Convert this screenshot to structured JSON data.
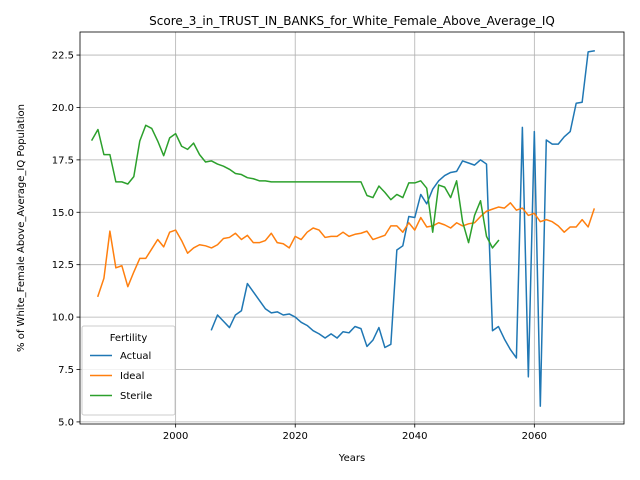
{
  "chart_data": {
    "type": "line",
    "title": "Score_3_in_TRUST_IN_BANKS_for_White_Female_Above_Average_IQ",
    "xlabel": "Years",
    "ylabel": "% of White_Female Above_Average_IQ Population",
    "xlim": [
      1984,
      2075
    ],
    "ylim": [
      4.9,
      23.6
    ],
    "xticks": [
      2000,
      2020,
      2040,
      2060
    ],
    "yticks": [
      5.0,
      7.5,
      10.0,
      12.5,
      15.0,
      17.5,
      20.0,
      22.5
    ],
    "xtick_labels": [
      "2000",
      "2020",
      "2040",
      "2060"
    ],
    "ytick_labels": [
      "5.0",
      "7.5",
      "10.0",
      "12.5",
      "15.0",
      "17.5",
      "20.0",
      "22.5"
    ],
    "grid": true,
    "legend": {
      "title": "Fertility",
      "placement": "lower-left"
    },
    "series": [
      {
        "name": "Actual",
        "color": "#1f77b4",
        "x": [
          2006,
          2007,
          2008,
          2009,
          2010,
          2011,
          2012,
          2013,
          2014,
          2015,
          2016,
          2017,
          2018,
          2019,
          2020,
          2021,
          2022,
          2023,
          2024,
          2025,
          2026,
          2027,
          2028,
          2029,
          2030,
          2031,
          2032,
          2033,
          2034,
          2035,
          2036,
          2037,
          2038,
          2039,
          2040,
          2041,
          2042,
          2043,
          2044,
          2045,
          2046,
          2047,
          2048,
          2049,
          2050,
          2051,
          2052,
          2053,
          2054,
          2055,
          2056,
          2057,
          2058,
          2059,
          2060,
          2061,
          2062,
          2063,
          2064,
          2065,
          2066,
          2067,
          2068,
          2069,
          2070
        ],
        "y": [
          9.4,
          10.1,
          9.8,
          9.5,
          10.1,
          10.3,
          11.6,
          11.2,
          10.8,
          10.4,
          10.2,
          10.25,
          10.1,
          10.15,
          10.0,
          9.75,
          9.6,
          9.35,
          9.2,
          9.0,
          9.2,
          9.0,
          9.3,
          9.25,
          9.55,
          9.45,
          8.6,
          8.9,
          9.5,
          8.55,
          8.7,
          13.2,
          13.4,
          14.8,
          14.75,
          15.85,
          15.4,
          16.1,
          16.5,
          16.75,
          16.9,
          16.95,
          17.45,
          17.35,
          17.25,
          17.5,
          17.3,
          9.35,
          9.55,
          8.95,
          8.45,
          8.05,
          19.05,
          7.15,
          18.85,
          5.75,
          18.45,
          18.25,
          18.25,
          18.6,
          18.85,
          20.2,
          20.25,
          22.65,
          22.7
        ]
      },
      {
        "name": "Ideal",
        "color": "#ff7f0e",
        "x": [
          1987,
          1988,
          1989,
          1990,
          1991,
          1992,
          1993,
          1994,
          1995,
          1996,
          1997,
          1998,
          1999,
          2000,
          2001,
          2002,
          2003,
          2004,
          2005,
          2006,
          2007,
          2008,
          2009,
          2010,
          2011,
          2012,
          2013,
          2014,
          2015,
          2016,
          2017,
          2018,
          2019,
          2020,
          2021,
          2022,
          2023,
          2024,
          2025,
          2026,
          2027,
          2028,
          2029,
          2030,
          2031,
          2032,
          2033,
          2034,
          2035,
          2036,
          2037,
          2038,
          2039,
          2040,
          2041,
          2042,
          2043,
          2044,
          2045,
          2046,
          2047,
          2048,
          2049,
          2050,
          2051,
          2052,
          2053,
          2054,
          2055,
          2056,
          2057,
          2058,
          2059,
          2060,
          2061,
          2062,
          2063,
          2064,
          2065,
          2066,
          2067,
          2068,
          2069,
          2070
        ],
        "y": [
          11.0,
          11.85,
          14.1,
          12.35,
          12.45,
          11.45,
          12.15,
          12.8,
          12.8,
          13.25,
          13.7,
          13.35,
          14.05,
          14.15,
          13.65,
          13.05,
          13.3,
          13.45,
          13.4,
          13.3,
          13.45,
          13.75,
          13.8,
          14.0,
          13.7,
          13.9,
          13.55,
          13.55,
          13.65,
          14.0,
          13.55,
          13.5,
          13.3,
          13.85,
          13.7,
          14.05,
          14.25,
          14.15,
          13.8,
          13.85,
          13.85,
          14.05,
          13.85,
          13.95,
          14.0,
          14.1,
          13.7,
          13.8,
          13.9,
          14.35,
          14.35,
          14.05,
          14.5,
          14.15,
          14.75,
          14.3,
          14.35,
          14.5,
          14.4,
          14.25,
          14.5,
          14.35,
          14.45,
          14.5,
          14.8,
          15.05,
          15.15,
          15.25,
          15.2,
          15.45,
          15.1,
          15.2,
          14.85,
          14.95,
          14.55,
          14.65,
          14.55,
          14.35,
          14.05,
          14.3,
          14.3,
          14.65,
          14.3,
          15.15
        ]
      },
      {
        "name": "Sterile",
        "color": "#2ca02c",
        "x": [
          1986,
          1987,
          1988,
          1989,
          1990,
          1991,
          1992,
          1993,
          1994,
          1995,
          1996,
          1997,
          1998,
          1999,
          2000,
          2001,
          2002,
          2003,
          2004,
          2005,
          2006,
          2007,
          2008,
          2009,
          2010,
          2011,
          2012,
          2013,
          2014,
          2015,
          2016,
          2017,
          2018,
          2019,
          2020,
          2021,
          2022,
          2023,
          2024,
          2025,
          2026,
          2027,
          2028,
          2029,
          2030,
          2031,
          2032,
          2033,
          2034,
          2035,
          2036,
          2037,
          2038,
          2039,
          2040,
          2041,
          2042,
          2043,
          2044,
          2045,
          2046,
          2047,
          2048,
          2049,
          2050,
          2051,
          2052,
          2053,
          2054
        ],
        "y": [
          18.45,
          18.95,
          17.75,
          17.75,
          16.45,
          16.45,
          16.35,
          16.7,
          18.4,
          19.15,
          19.0,
          18.4,
          17.7,
          18.55,
          18.75,
          18.15,
          18.0,
          18.3,
          17.75,
          17.4,
          17.45,
          17.3,
          17.2,
          17.05,
          16.85,
          16.8,
          16.65,
          16.6,
          16.5,
          16.5,
          16.45,
          16.45,
          16.45,
          16.45,
          16.45,
          16.45,
          16.45,
          16.45,
          16.45,
          16.45,
          16.45,
          16.45,
          16.45,
          16.45,
          16.45,
          16.45,
          15.8,
          15.7,
          16.25,
          15.95,
          15.6,
          15.85,
          15.7,
          16.4,
          16.4,
          16.5,
          16.15,
          14.05,
          16.3,
          16.2,
          15.7,
          16.5,
          14.55,
          13.55,
          14.85,
          15.55,
          13.85,
          13.3,
          13.65
        ]
      }
    ]
  }
}
